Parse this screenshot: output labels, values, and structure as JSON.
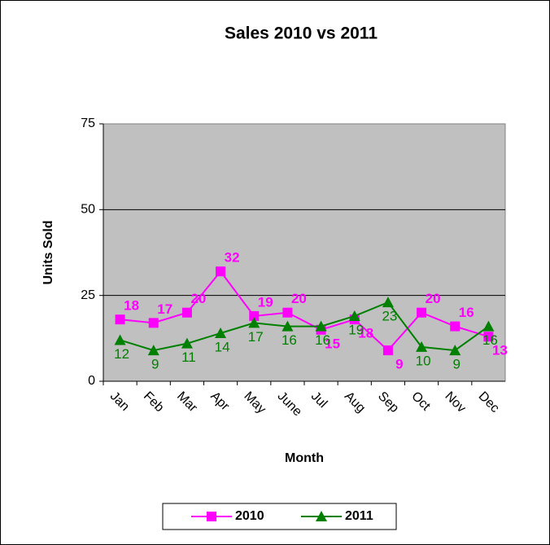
{
  "chart_data": {
    "type": "line",
    "title": "Sales  2010 vs 2011",
    "x_label": "Month",
    "y_label": "Units Sold",
    "categories": [
      "Jan",
      "Feb",
      "Mar",
      "Apr",
      "May",
      "June",
      "Jul",
      "Aug",
      "Sep",
      "Oct",
      "Nov",
      "Dec"
    ],
    "series": [
      {
        "name": "2010",
        "color": "#ff00ff",
        "values": [
          18,
          17,
          20,
          32,
          19,
          20,
          15,
          18,
          9,
          20,
          16,
          13
        ]
      },
      {
        "name": "2011",
        "color": "#008000",
        "values": [
          12,
          9,
          11,
          14,
          17,
          16,
          16,
          19,
          23,
          10,
          9,
          16
        ]
      }
    ],
    "ylim": [
      0,
      75
    ],
    "yticks": [
      0,
      25,
      50,
      75
    ],
    "grid": true,
    "legend": "bottom"
  }
}
